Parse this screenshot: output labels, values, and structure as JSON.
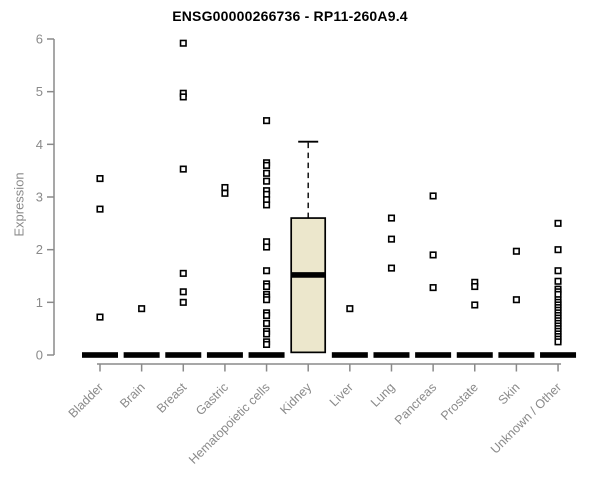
{
  "chart_data": {
    "type": "boxplot",
    "title": "ENSG00000266736 - RP11-260A9.4",
    "ylabel": "Expression",
    "xlabel": "",
    "ylim": [
      0,
      6
    ],
    "yticks": [
      0,
      1,
      2,
      3,
      4,
      5,
      6
    ],
    "grid": false,
    "legend": false,
    "categories": [
      "Bladder",
      "Brain",
      "Breast",
      "Gastric",
      "Hematopoietic cells",
      "Kidney",
      "Liver",
      "Lung",
      "Pancreas",
      "Prostate",
      "Skin",
      "Unknown / Other"
    ],
    "boxes": [
      {
        "category": "Bladder",
        "median": 0,
        "q1": 0,
        "q3": 0,
        "whisker_low": 0,
        "whisker_high": 0,
        "outliers": [
          3.35,
          2.77,
          0.72
        ]
      },
      {
        "category": "Brain",
        "median": 0,
        "q1": 0,
        "q3": 0,
        "whisker_low": 0,
        "whisker_high": 0,
        "outliers": [
          0.88
        ]
      },
      {
        "category": "Breast",
        "median": 0,
        "q1": 0,
        "q3": 0,
        "whisker_low": 0,
        "whisker_high": 0,
        "outliers": [
          5.92,
          4.97,
          4.9,
          3.53,
          1.55,
          1.2,
          1.0
        ]
      },
      {
        "category": "Gastric",
        "median": 0,
        "q1": 0,
        "q3": 0,
        "whisker_low": 0,
        "whisker_high": 0,
        "outliers": [
          3.18,
          3.07
        ]
      },
      {
        "category": "Hematopoietic cells",
        "median": 0,
        "q1": 0,
        "q3": 0,
        "whisker_low": 0,
        "whisker_high": 0,
        "outliers": [
          4.45,
          3.65,
          3.6,
          3.45,
          3.3,
          3.12,
          3.05,
          2.95,
          2.85,
          2.15,
          2.05,
          1.6,
          1.35,
          1.3,
          1.15,
          1.1,
          1.05,
          0.8,
          0.75,
          0.6,
          0.45,
          0.4,
          0.25,
          0.2
        ]
      },
      {
        "category": "Kidney",
        "median": 1.52,
        "q1": 0.05,
        "q3": 2.6,
        "whisker_low": 0.05,
        "whisker_high": 4.05,
        "outliers": []
      },
      {
        "category": "Liver",
        "median": 0,
        "q1": 0,
        "q3": 0,
        "whisker_low": 0,
        "whisker_high": 0,
        "outliers": [
          0.88
        ]
      },
      {
        "category": "Lung",
        "median": 0,
        "q1": 0,
        "q3": 0,
        "whisker_low": 0,
        "whisker_high": 0,
        "outliers": [
          2.6,
          2.2,
          1.65
        ]
      },
      {
        "category": "Pancreas",
        "median": 0,
        "q1": 0,
        "q3": 0,
        "whisker_low": 0,
        "whisker_high": 0,
        "outliers": [
          3.02,
          1.9,
          1.28
        ]
      },
      {
        "category": "Prostate",
        "median": 0,
        "q1": 0,
        "q3": 0,
        "whisker_low": 0,
        "whisker_high": 0,
        "outliers": [
          1.38,
          1.3,
          0.95
        ]
      },
      {
        "category": "Skin",
        "median": 0,
        "q1": 0,
        "q3": 0,
        "whisker_low": 0,
        "whisker_high": 0,
        "outliers": [
          1.97,
          1.05
        ]
      },
      {
        "category": "Unknown / Other",
        "median": 0,
        "q1": 0,
        "q3": 0,
        "whisker_low": 0,
        "whisker_high": 0,
        "outliers": [
          2.5,
          2.0,
          1.6,
          1.4,
          1.25,
          1.2,
          1.15,
          1.05,
          1.0,
          0.95,
          0.9,
          0.85,
          0.8,
          0.75,
          0.7,
          0.65,
          0.6,
          0.55,
          0.5,
          0.45,
          0.4,
          0.35,
          0.3,
          0.25
        ]
      }
    ],
    "colors": {
      "background": "#ffffff",
      "box_fill": "#ECE7CC",
      "box_stroke": "#000000",
      "median": "#000000",
      "outlier_stroke": "#000000",
      "outlier_fill": "#ffffff",
      "axis": "#8a8a8a",
      "tick_text": "#8a8a8a",
      "title_text": "#000000"
    }
  }
}
